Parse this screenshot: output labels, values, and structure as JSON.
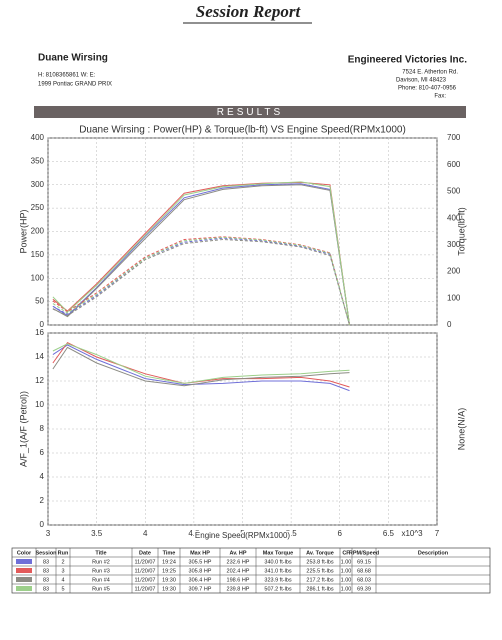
{
  "header": {
    "title": "Session Report"
  },
  "customer": {
    "name": "Duane Wirsing",
    "phones": "H: 8108365861   W:      E:",
    "vehicle": "1999 Pontiac GRAND PRIX"
  },
  "shop": {
    "name": "Engineered Victories Inc.",
    "address": "7524 E. Atherton Rd.",
    "city": "Davison, MI 48423",
    "phone": "Phone: 810-407-0956",
    "fax": "Fax:"
  },
  "section": "RESULTS",
  "chart_data": [
    {
      "type": "line",
      "title": "Duane Wirsing : Power(HP) & Torque(lb-ft) VS Engine Speed(RPMx1000)",
      "ylabel": "Power(HP)",
      "y2label": "Torque(lb-ft)",
      "grid": true,
      "x": [
        3.05,
        3.2,
        3.5,
        4.0,
        4.4,
        4.8,
        5.2,
        5.6,
        5.9,
        6.1
      ],
      "xlim": [
        3,
        7
      ],
      "xticks": [
        3,
        3.5,
        4,
        4.5,
        5,
        5.5,
        6,
        6.5,
        7
      ],
      "ylim": [
        0,
        400
      ],
      "yticks": [
        0,
        50,
        100,
        150,
        200,
        250,
        300,
        350,
        400
      ],
      "y2lim": [
        0,
        700
      ],
      "y2ticks": [
        0,
        100,
        200,
        300,
        400,
        500,
        600,
        700
      ],
      "series": [
        {
          "color": "#6f6fd8",
          "values": [
            40,
            20,
            80,
            190,
            272,
            293,
            300,
            302,
            290,
            0
          ]
        },
        {
          "color": "#e25a5a",
          "values": [
            55,
            30,
            88,
            196,
            282,
            298,
            303,
            305,
            300,
            0
          ]
        },
        {
          "color": "#8c8c84",
          "values": [
            35,
            18,
            78,
            185,
            268,
            290,
            298,
            300,
            288,
            0
          ]
        },
        {
          "color": "#9ccf8a",
          "values": [
            60,
            28,
            85,
            192,
            278,
            296,
            302,
            306,
            296,
            0
          ]
        },
        {
          "color": "#6f6fd8",
          "axis": "y2",
          "dash": true,
          "values": [
            70,
            40,
            110,
            250,
            310,
            325,
            315,
            295,
            265,
            0
          ]
        },
        {
          "color": "#e25a5a",
          "axis": "y2",
          "dash": true,
          "values": [
            90,
            50,
            120,
            255,
            320,
            330,
            320,
            300,
            270,
            0
          ]
        },
        {
          "color": "#8c8c84",
          "axis": "y2",
          "dash": true,
          "values": [
            60,
            35,
            105,
            245,
            305,
            320,
            312,
            292,
            260,
            0
          ]
        },
        {
          "color": "#9ccf8a",
          "axis": "y2",
          "dash": true,
          "values": [
            80,
            45,
            115,
            250,
            315,
            328,
            318,
            298,
            268,
            0
          ]
        }
      ]
    },
    {
      "type": "line",
      "ylabel": "A/F_1(A/F (Petrol))",
      "y2label": "None(N/A)",
      "grid": true,
      "xlabel": "Engine Speed(RPMx1000)",
      "xunit": "x10^3",
      "x": [
        3.05,
        3.2,
        3.5,
        4.0,
        4.4,
        4.8,
        5.2,
        5.6,
        5.9,
        6.1
      ],
      "xlim": [
        3,
        7
      ],
      "xticks": [
        3,
        3.5,
        4,
        4.5,
        5,
        5.5,
        6,
        6.5,
        7
      ],
      "ylim": [
        0,
        16
      ],
      "yticks": [
        0,
        2,
        4,
        6,
        8,
        10,
        12,
        14,
        16
      ],
      "series": [
        {
          "color": "#6f6fd8",
          "values": [
            14.2,
            15,
            13.8,
            12.2,
            11.7,
            11.8,
            12,
            12,
            11.8,
            11.2
          ]
        },
        {
          "color": "#e25a5a",
          "values": [
            13.5,
            15.2,
            14,
            12.6,
            11.8,
            12.2,
            12.2,
            12.3,
            12,
            11.5
          ]
        },
        {
          "color": "#8c8c84",
          "values": [
            13,
            14.8,
            13.5,
            12,
            11.6,
            12.1,
            12.3,
            12.4,
            12.6,
            12.7
          ]
        },
        {
          "color": "#9ccf8a",
          "values": [
            14.5,
            15.1,
            14.2,
            12.4,
            11.8,
            12.3,
            12.5,
            12.6,
            12.8,
            12.9
          ]
        }
      ]
    }
  ],
  "table": {
    "columns": [
      "Color",
      "Session",
      "Run",
      "Title",
      "Date",
      "Time",
      "Max HP",
      "Av. HP",
      "Max Torque",
      "Av. Torque",
      "CF",
      "RPM/Speed",
      "Description"
    ],
    "rows": [
      [
        "83",
        "2",
        "Run #2",
        "11/20/07",
        "19:24",
        "305.5 HP",
        "232.6 HP",
        "340.0 ft-lbs",
        "253.8 ft-lbs",
        "1.00",
        "69.15"
      ],
      [
        "83",
        "3",
        "Run #3",
        "11/20/07",
        "19:25",
        "305.8 HP",
        "202.4 HP",
        "341.0 ft-lbs",
        "225.5 ft-lbs",
        "1.00",
        "68.68"
      ],
      [
        "83",
        "4",
        "Run #4",
        "11/20/07",
        "19:30",
        "306.4 HP",
        "198.6 HP",
        "323.9 ft-lbs",
        "217.2 ft-lbs",
        "1.00",
        "68.03"
      ],
      [
        "83",
        "5",
        "Run #5",
        "11/20/07",
        "19:30",
        "309.7 HP",
        "239.8 HP",
        "507.2 ft-lbs",
        "286.1 ft-lbs",
        "1.00",
        "69.39"
      ]
    ]
  }
}
